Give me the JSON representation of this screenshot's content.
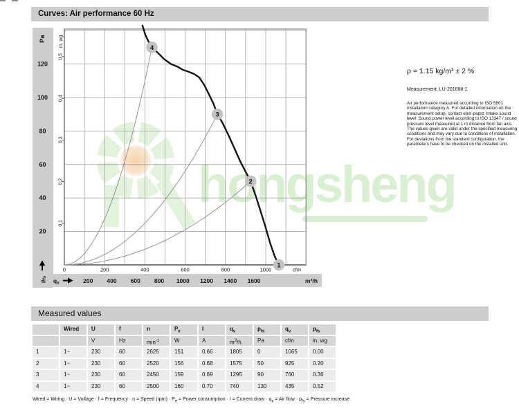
{
  "header": {
    "title": "Curves: Air performance 60 Hz"
  },
  "watermark": {
    "text": "hongsheng"
  },
  "side_note": {
    "density": "ρ = 1.15 kg/m³ ± 2 %",
    "measurement": "Measurement: LU-201688-1",
    "body": "Air performance measured according to ISO 5801 installation category A. For detailed information on the measurement setup, contact ebm-papst. Intake sound level: Sound power level according to ISO 13347 / sound pressure level measured at 1 m distance from fan axis. The values given are valid under the specified measuring conditions and may vary due to conditions of installation. For deviations from the standard configuration, the parameters have to be checked on the installed unit."
  },
  "chart_data": {
    "type": "line",
    "title": "Air performance 60 Hz",
    "grid": true,
    "xlim_cfm": [
      0,
      1200
    ],
    "ylim_pa": [
      0,
      141
    ],
    "x_axis": {
      "unit_top": "cfm",
      "ticks_cfm": [
        0,
        200,
        400,
        600,
        800,
        1000
      ],
      "unit_bottom": "m³/h",
      "ticks_m3h": [
        200,
        400,
        600,
        800,
        1000,
        1200,
        1400,
        1600
      ],
      "flow_label": "qv"
    },
    "y_axis": {
      "unit_left": "Pa",
      "ticks_pa": [
        120,
        100,
        80,
        60,
        40,
        20
      ],
      "unit_inner": "in. wg",
      "ticks_inwg": [
        "0.5",
        "0.4",
        "0.3",
        "0.2",
        "0.1"
      ],
      "pressure_label": "pfs"
    },
    "fan_curve_cfm_pa": [
      [
        388,
        143
      ],
      [
        402,
        137.5
      ],
      [
        420,
        133
      ],
      [
        435,
        130
      ],
      [
        462,
        127
      ],
      [
        495,
        123
      ],
      [
        530,
        120
      ],
      [
        560,
        118.5
      ],
      [
        590,
        116.5
      ],
      [
        615,
        115.5
      ],
      [
        645,
        114
      ],
      [
        670,
        112
      ],
      [
        695,
        107.5
      ],
      [
        720,
        101.5
      ],
      [
        740,
        96.5
      ],
      [
        760,
        90
      ],
      [
        785,
        85
      ],
      [
        815,
        77.5
      ],
      [
        845,
        69.5
      ],
      [
        875,
        61.5
      ],
      [
        905,
        54.5
      ],
      [
        925,
        50
      ],
      [
        948,
        42
      ],
      [
        972,
        33
      ],
      [
        998,
        23
      ],
      [
        1022,
        13
      ],
      [
        1045,
        5
      ],
      [
        1065,
        0
      ]
    ],
    "operating_points": [
      {
        "label": "1",
        "cfm": 1065,
        "pa": 0
      },
      {
        "label": "2",
        "cfm": 925,
        "pa": 50
      },
      {
        "label": "3",
        "cfm": 760,
        "pa": 90
      },
      {
        "label": "4",
        "cfm": 435,
        "pa": 130
      }
    ],
    "system_curves_to": [
      "4",
      "3",
      "2"
    ]
  },
  "table": {
    "section_title": "Measured values",
    "col_headers": [
      [],
      [
        {
          "t": "Wired"
        }
      ],
      [
        {
          "t": "U"
        }
      ],
      [
        {
          "t": "f"
        }
      ],
      [
        {
          "t": "n"
        }
      ],
      [
        {
          "t": "P"
        },
        {
          "t": "e",
          "s": "sub"
        }
      ],
      [
        {
          "t": "I"
        }
      ],
      [
        {
          "t": "q"
        },
        {
          "t": "v",
          "s": "sub"
        }
      ],
      [
        {
          "t": "p"
        },
        {
          "t": "fs",
          "s": "sub"
        }
      ],
      [
        {
          "t": "q"
        },
        {
          "t": "v",
          "s": "sub"
        }
      ],
      [
        {
          "t": "p"
        },
        {
          "t": "fs",
          "s": "sub"
        }
      ]
    ],
    "unit_row": [
      [],
      [],
      [
        {
          "t": "V"
        }
      ],
      [
        {
          "t": "Hz"
        }
      ],
      [
        {
          "t": "min"
        },
        {
          "t": "-1",
          "s": "sup"
        }
      ],
      [
        {
          "t": "W"
        }
      ],
      [
        {
          "t": "A"
        }
      ],
      [
        {
          "t": "m"
        },
        {
          "t": "3",
          "s": "sup"
        },
        {
          "t": "/h"
        }
      ],
      [
        {
          "t": "Pa"
        }
      ],
      [
        {
          "t": "cfm"
        }
      ],
      [
        {
          "t": "in. wg"
        }
      ]
    ],
    "rows": [
      [
        "1",
        "1~",
        "230",
        "60",
        "2625",
        "151",
        "0.66",
        "1805",
        "0",
        "1065",
        "0.00"
      ],
      [
        "2",
        "1~",
        "230",
        "60",
        "2520",
        "156",
        "0.68",
        "1575",
        "50",
        "925",
        "0.20"
      ],
      [
        "3",
        "1~",
        "230",
        "60",
        "2450",
        "159",
        "0.69",
        "1295",
        "90",
        "760",
        "0.36"
      ],
      [
        "4",
        "1~",
        "230",
        "60",
        "2500",
        "160",
        "0.70",
        "740",
        "130",
        "435",
        "0.52"
      ]
    ],
    "legend": [
      {
        "t": "Wired = Wiring · U = Voltage · f = Frequency · n = Speed (rpm) · "
      },
      {
        "t": "P"
      },
      {
        "t": "e",
        "s": "sub"
      },
      {
        "t": " = Power consumption · I = Current draw · "
      },
      {
        "t": "q"
      },
      {
        "t": "v",
        "s": "sub"
      },
      {
        "t": " = Air flow · "
      },
      {
        "t": "p"
      },
      {
        "t": "fs",
        "s": "sub"
      },
      {
        "t": " = Pressure increase"
      }
    ]
  },
  "colors": {
    "bar_gray": "#cdcdcd",
    "table_head": "#d6d6d6",
    "table_row": "#ececec",
    "grid": "#9c9c9c",
    "frame": "#6e6e6e",
    "axis": "#333333",
    "curve": "#141414",
    "system_line": "#8a8a8a",
    "marker_fill": "#c2c2c2",
    "marker_text": "#ffffff",
    "watermark_green": "#d9eed3",
    "watermark_green_light": "#e3f2dd",
    "watermark_orange": "#f6cfa7"
  }
}
